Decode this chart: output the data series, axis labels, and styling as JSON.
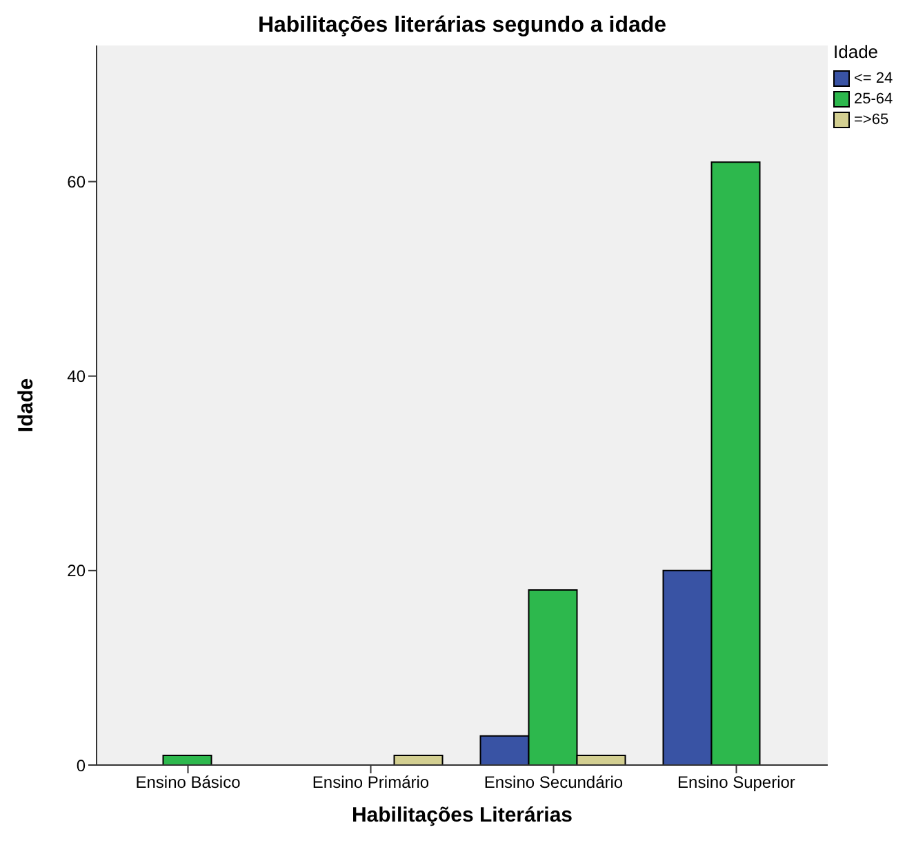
{
  "chart_data": {
    "type": "bar",
    "title": "Habilitações literárias segundo a idade",
    "xlabel": "Habilitações Literárias",
    "ylabel": "Idade",
    "legend_title": "Idade",
    "categories": [
      "Ensino Básico",
      "Ensino Primário",
      "Ensino Secundário",
      "Ensino Superior"
    ],
    "series": [
      {
        "name": "<= 24",
        "color": "#3953a4",
        "values": [
          0,
          0,
          3,
          20
        ]
      },
      {
        "name": "25-64",
        "color": "#2db84d",
        "values": [
          1,
          0,
          18,
          62
        ]
      },
      {
        "name": "=>65",
        "color": "#d3cf91",
        "values": [
          0,
          1,
          1,
          0
        ]
      }
    ],
    "ylim": [
      0,
      74
    ],
    "yticks": [
      0,
      20,
      40,
      60
    ],
    "grid": false,
    "legend": "top right"
  }
}
